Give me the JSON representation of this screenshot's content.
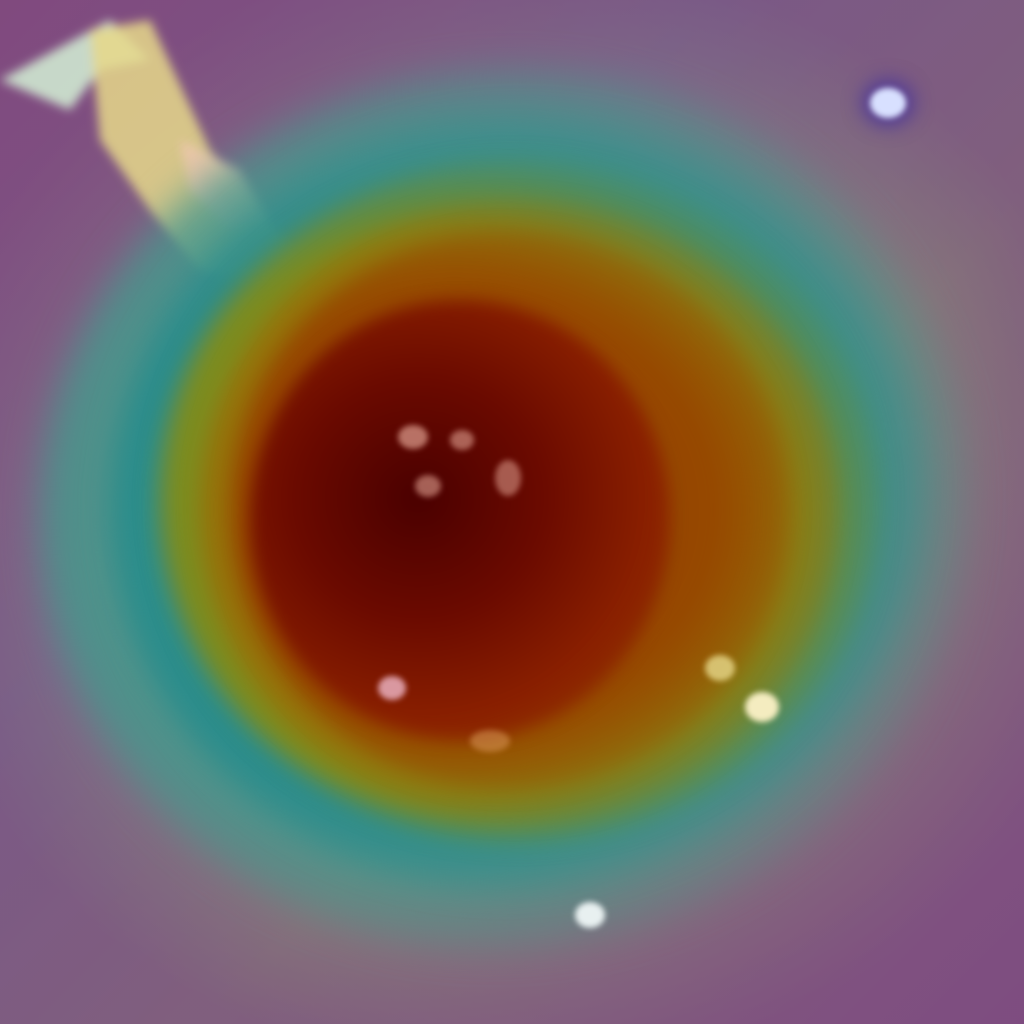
{
  "scene": {
    "description_kind": "false-color heatmap blob",
    "colors": {
      "background": "#7d7a8a",
      "outer_purple": "#86607e",
      "teal": "#2f8c8c",
      "green": "#7f8c1e",
      "yellow": "#96730a",
      "orange": "#963c00",
      "core": "#4a0000",
      "highlight": "#f0e6c8",
      "blue_spot": "#c8d2ff"
    }
  }
}
